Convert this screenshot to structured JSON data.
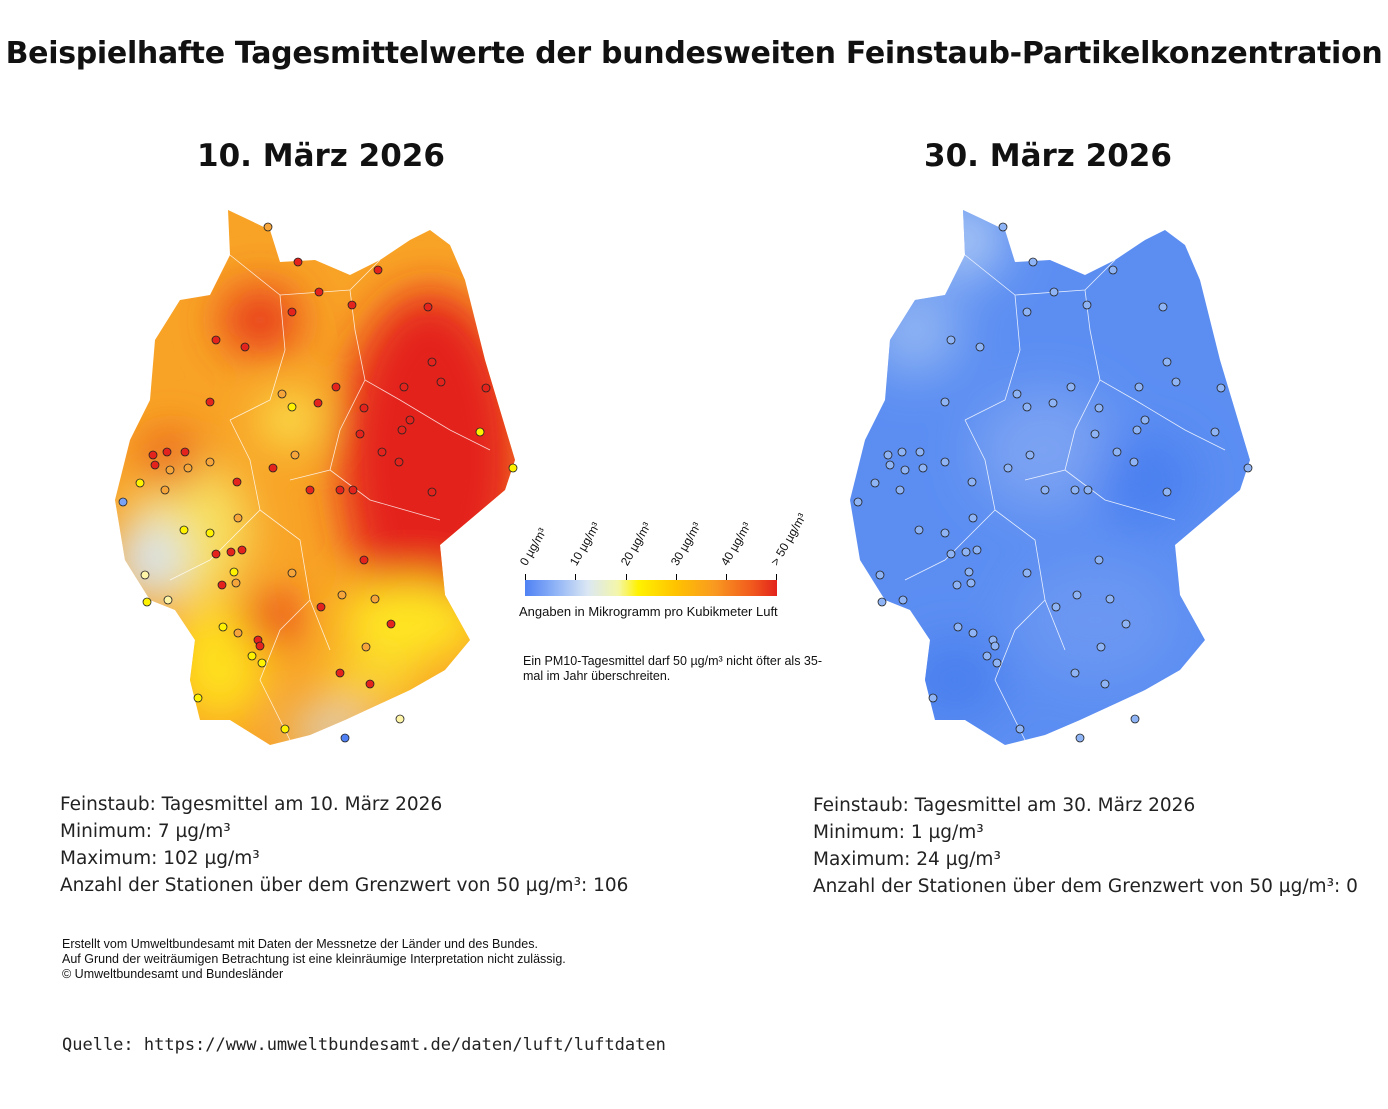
{
  "title": "Beispielhafte Tagesmittelwerte der bundesweiten Feinstaub-Partikelkonzentration",
  "maps": [
    {
      "date_title": "10. März 2026",
      "summary": {
        "line1": "Feinstaub: Tagesmittel am 10. März 2026",
        "line2": "Minimum: 7 µg/m³",
        "line3": "Maximum: 102 µg/m³",
        "line4": "Anzahl der Stationen über dem Grenzwert von 50 µg/m³: 106"
      }
    },
    {
      "date_title": "30. März 2026",
      "summary": {
        "line1": "Feinstaub: Tagesmittel am 30. März 2026",
        "line2": "Minimum: 1 µg/m³",
        "line3": "Maximum: 24 µg/m³",
        "line4": "Anzahl der Stationen über dem Grenzwert von 50 µg/m³: 0"
      }
    }
  ],
  "legend": {
    "ticks": [
      "0 µg/m³",
      "10 µg/m³",
      "20 µg/m³",
      "30 µg/m³",
      "40 µg/m³",
      "> 50 µg/m³"
    ],
    "unit_text": "Angaben in Mikrogramm pro Kubikmeter Luft",
    "note": "Ein PM10-Tagesmittel darf 50 µg/m³ nicht öfter als 35-mal im Jahr überschreiten.",
    "colors": [
      "#4f81f4",
      "#dbe7f3",
      "#fff200",
      "#f99a20",
      "#e3231c"
    ]
  },
  "credits": {
    "line1": "Erstellt vom Umweltbundesamt mit Daten der Messnetze der Länder und des Bundes.",
    "line2": "Auf Grund der weiträumigen Betrachtung ist eine kleinräumige Interpretation nicht zulässig.",
    "line3": "© Umweltbundesamt und Bundesländer"
  },
  "source": "Quelle: https://www.umweltbundesamt.de/daten/luft/luftdaten"
}
